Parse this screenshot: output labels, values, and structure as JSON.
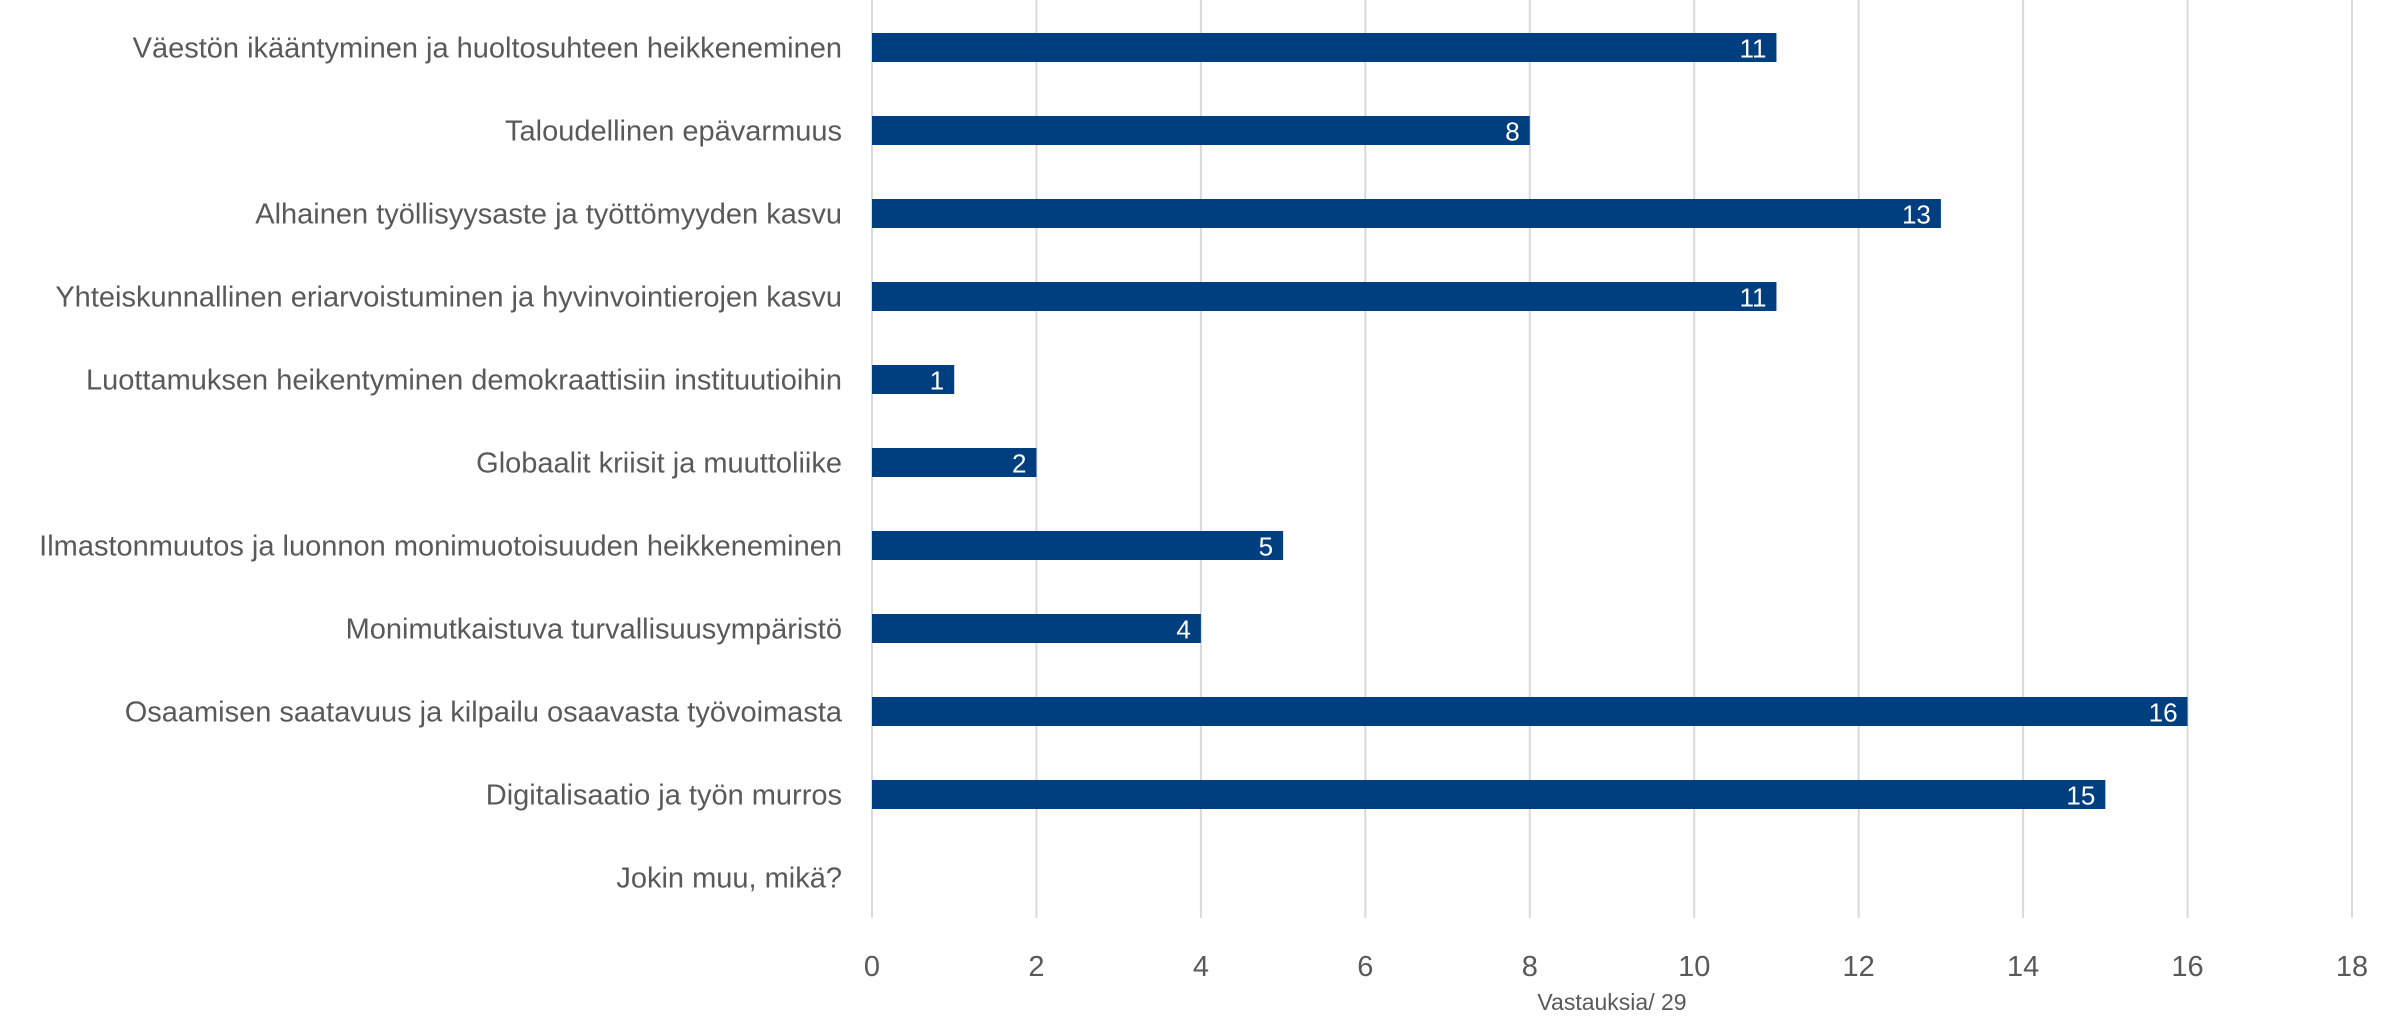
{
  "chart_data": {
    "type": "bar",
    "orientation": "horizontal",
    "categories": [
      "Väestön ikääntyminen ja huoltosuhteen heikkeneminen",
      "Taloudellinen epävarmuus",
      "Alhainen työllisyysaste ja työttömyyden kasvu",
      "Yhteiskunnallinen eriarvoistuminen ja hyvinvointierojen kasvu",
      "Luottamuksen heikentyminen demokraattisiin instituutioihin",
      "Globaalit kriisit ja muuttoliike",
      "Ilmastonmuutos ja luonnon monimuotoisuuden heikkeneminen",
      "Monimutkaistuva turvallisuusympäristö",
      "Osaamisen saatavuus ja kilpailu osaavasta työvoimasta",
      "Digitalisaatio ja työn murros",
      "Jokin muu, mikä?"
    ],
    "values": [
      11,
      8,
      13,
      11,
      1,
      2,
      5,
      4,
      16,
      15,
      null
    ],
    "xlabel": "Vastauksia/ 29",
    "xlim": [
      0,
      18
    ],
    "xticks": [
      0,
      2,
      4,
      6,
      8,
      10,
      12,
      14,
      16,
      18
    ],
    "grid": "vertical",
    "data_labels": true,
    "legend": "none",
    "bar_color": "#003f7f",
    "grid_color": "#d9d9d9",
    "label_color": "#595959"
  }
}
